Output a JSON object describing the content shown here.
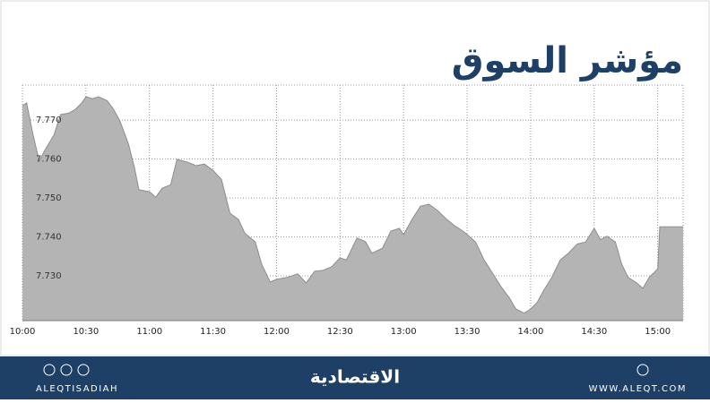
{
  "chart_data": {
    "type": "area",
    "title": "مؤشر السوق",
    "x": [
      "10:00",
      "10:02",
      "10:05",
      "10:08",
      "10:10",
      "10:15",
      "10:18",
      "10:22",
      "10:25",
      "10:28",
      "10:30",
      "10:33",
      "10:36",
      "10:40",
      "10:43",
      "10:46",
      "10:50",
      "10:53",
      "10:55",
      "11:00",
      "11:03",
      "11:06",
      "11:10",
      "11:13",
      "11:18",
      "11:22",
      "11:26",
      "11:30",
      "11:34",
      "11:38",
      "11:42",
      "11:45",
      "11:50",
      "11:53",
      "11:57",
      "12:00",
      "12:05",
      "12:10",
      "12:14",
      "12:18",
      "12:22",
      "12:26",
      "12:30",
      "12:33",
      "12:38",
      "12:42",
      "12:45",
      "12:50",
      "12:54",
      "12:58",
      "13:00",
      "13:04",
      "13:08",
      "13:12",
      "13:16",
      "13:20",
      "13:24",
      "13:28",
      "13:30",
      "13:34",
      "13:38",
      "13:42",
      "13:46",
      "13:50",
      "13:53",
      "13:57",
      "14:00",
      "14:03",
      "14:06",
      "14:10",
      "14:14",
      "14:18",
      "14:22",
      "14:26",
      "14:30",
      "14:33",
      "14:36",
      "14:40",
      "14:43",
      "14:46",
      "14:50",
      "14:53",
      "14:56",
      "15:00",
      "15:01",
      "15:12"
    ],
    "values": [
      7.7737,
      7.7744,
      7.7663,
      7.7594,
      7.7617,
      7.7663,
      7.7714,
      7.7718,
      7.7728,
      7.7744,
      7.776,
      7.7755,
      7.776,
      7.775,
      7.7728,
      7.7698,
      7.764,
      7.7576,
      7.7521,
      7.7516,
      7.7502,
      7.7525,
      7.7534,
      7.7599,
      7.7592,
      7.7583,
      7.7587,
      7.7571,
      7.7548,
      7.7461,
      7.7445,
      7.741,
      7.7387,
      7.733,
      7.7284,
      7.7291,
      7.7296,
      7.7305,
      7.7282,
      7.7312,
      7.7314,
      7.7323,
      7.7346,
      7.7341,
      7.7397,
      7.7388,
      7.7358,
      7.7371,
      7.7415,
      7.7422,
      7.7406,
      7.7445,
      7.7479,
      7.7484,
      7.7468,
      7.7447,
      7.7429,
      7.7415,
      7.7406,
      7.7387,
      7.7341,
      7.7307,
      7.7272,
      7.7243,
      7.7215,
      7.7204,
      7.7215,
      7.7231,
      7.7261,
      7.7296,
      7.7341,
      7.7359,
      7.7382,
      7.7387,
      7.7422,
      7.7393,
      7.7402,
      7.7387,
      7.733,
      7.7296,
      7.7282,
      7.7268,
      7.7296,
      7.7318,
      7.7426,
      7.7426
    ],
    "color": "#b5b4b4",
    "line_color": "#8e8d8d",
    "xlim": [
      "10:00",
      "15:12"
    ],
    "xticks": [
      "10:00",
      "10:30",
      "11:00",
      "11:30",
      "12:00",
      "12:30",
      "13:00",
      "13:30",
      "14:00",
      "14:30",
      "15:00"
    ],
    "ylim": [
      7.7185,
      7.779
    ],
    "yticks": [
      {
        "value": 7.73,
        "label": "7.730"
      },
      {
        "value": 7.74,
        "label": "7.740"
      },
      {
        "value": 7.75,
        "label": "7.750"
      },
      {
        "value": 7.76,
        "label": "7.760"
      },
      {
        "value": 7.77,
        "label": "7.770"
      }
    ],
    "grid": true
  },
  "footer": {
    "left": "ALEQTISADIAH",
    "logo": "الاقتصادية",
    "right": "WWW.ALEQT.COM"
  }
}
